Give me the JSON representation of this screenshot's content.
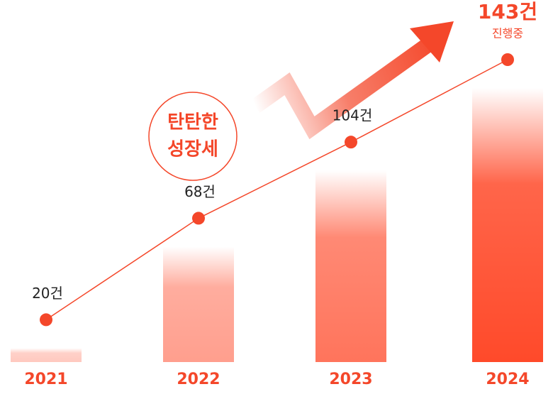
{
  "chart_data": {
    "type": "bar-line",
    "categories": [
      "2021",
      "2022",
      "2023",
      "2024"
    ],
    "values": [
      20,
      68,
      104,
      143
    ],
    "value_labels": [
      "20건",
      "68건",
      "104건",
      "143건"
    ],
    "color": "#f4472a",
    "annotations": {
      "status": "진행중",
      "badge": [
        "탄탄한",
        "성장세"
      ]
    }
  }
}
